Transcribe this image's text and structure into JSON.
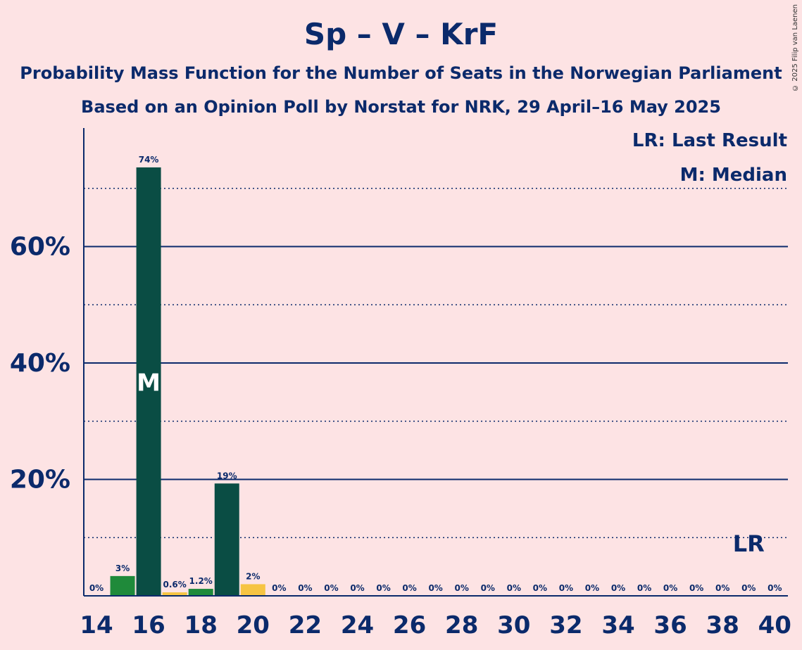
{
  "title": "Sp – V – KrF",
  "subtitle1": "Probability Mass Function for the Number of Seats in the Norwegian Parliament",
  "subtitle2": "Based on an Opinion Poll by Norstat for NRK, 29 April–16 May 2025",
  "copyright": "© 2025 Filip van Laenen",
  "legend": {
    "lr": "LR: Last Result",
    "m": "M: Median"
  },
  "markers": {
    "median_label": "M",
    "last_result_label": "LR"
  },
  "colors": {
    "background": "#fde3e4",
    "text": "#0b2a6b",
    "axis": "#0b2a6b",
    "bar_dark": "#0a4d44",
    "bar_green": "#1f8a3a",
    "bar_yellow": "#f6c443"
  },
  "chart_data": {
    "type": "bar",
    "title": "Sp – V – KrF",
    "xlabel": "",
    "ylabel": "",
    "ylim": [
      0,
      80
    ],
    "yticks_major": [
      20,
      40,
      60
    ],
    "ytick_labels": [
      "20%",
      "40%",
      "60%"
    ],
    "yticks_minor": [
      10,
      30,
      50,
      70
    ],
    "grid": true,
    "legend_position": "top-right",
    "xtick_labels": [
      "14",
      "16",
      "18",
      "20",
      "22",
      "24",
      "26",
      "28",
      "30",
      "32",
      "34",
      "36",
      "38",
      "40"
    ],
    "categories": [
      14,
      15,
      16,
      17,
      18,
      19,
      20,
      21,
      22,
      23,
      24,
      25,
      26,
      27,
      28,
      29,
      30,
      31,
      32,
      33,
      34,
      35,
      36,
      37,
      38,
      39,
      40
    ],
    "values": [
      0,
      3.4,
      73.6,
      0.6,
      1.2,
      19.3,
      2.0,
      0,
      0,
      0,
      0,
      0,
      0,
      0,
      0,
      0,
      0,
      0,
      0,
      0,
      0,
      0,
      0,
      0,
      0,
      0,
      0
    ],
    "value_labels": [
      "0%",
      "3%",
      "74%",
      "0.6%",
      "1.2%",
      "19%",
      "2%",
      "0%",
      "0%",
      "0%",
      "0%",
      "0%",
      "0%",
      "0%",
      "0%",
      "0%",
      "0%",
      "0%",
      "0%",
      "0%",
      "0%",
      "0%",
      "0%",
      "0%",
      "0%",
      "0%",
      "0%"
    ],
    "bar_colors": [
      "#0a4d44",
      "#1f8a3a",
      "#0a4d44",
      "#f6c443",
      "#1f8a3a",
      "#0a4d44",
      "#f6c443",
      "#0a4d44",
      "#0a4d44",
      "#0a4d44",
      "#0a4d44",
      "#0a4d44",
      "#0a4d44",
      "#0a4d44",
      "#0a4d44",
      "#0a4d44",
      "#0a4d44",
      "#0a4d44",
      "#0a4d44",
      "#0a4d44",
      "#0a4d44",
      "#0a4d44",
      "#0a4d44",
      "#0a4d44",
      "#0a4d44",
      "#0a4d44",
      "#0a4d44"
    ],
    "median_seat": 16,
    "last_result_seat": 39
  }
}
